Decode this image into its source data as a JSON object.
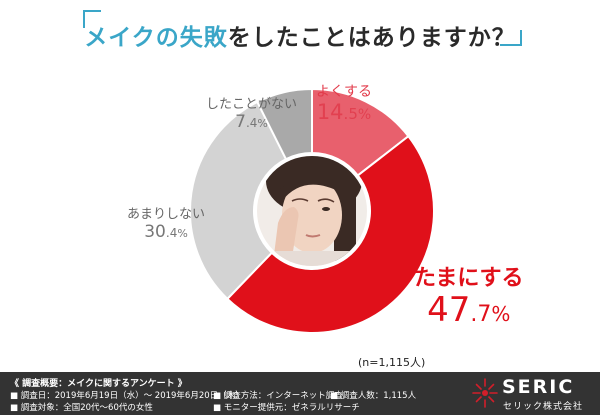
{
  "title": {
    "pre": "メイクの失敗",
    "post": "をしたことはありますか？"
  },
  "colors": {
    "accent": "#3aa6c8",
    "tamani": "#e0101a",
    "yoku": "#e8606d",
    "amari": "#d3d3d3",
    "nai": "#a9a9a9"
  },
  "chart_data": {
    "type": "pie",
    "donut": true,
    "center_image": "woman-rubbing-eye",
    "categories": [
      "よくする",
      "たまにする",
      "あまりしない",
      "したことがない"
    ],
    "values": [
      14.5,
      47.7,
      30.4,
      7.4
    ],
    "value_labels": {
      "よくする": {
        "int": "14",
        "dec": ".5",
        "unit": "%"
      },
      "たまにする": {
        "int": "47",
        "dec": ".7",
        "unit": "%"
      },
      "あまりしない": {
        "int": "30",
        "dec": ".4",
        "unit": "%"
      },
      "したことがない": {
        "int": "7",
        "dec": ".4",
        "unit": "%"
      }
    },
    "note": "(n=1,115人)"
  },
  "footer": {
    "heading": "《 調査概要：メイクに関するアンケート 》",
    "date": "■ 調査日：2019年6月19日（水）～ 2019年6月20日（木）",
    "target": "■ 調査対象：全国20代～60代の女性",
    "method": "■ 調査方法：インターネット調査",
    "count": "■ 調査人数：1,115人",
    "provider": "■ モニター提供元：ゼネラルリサーチ",
    "logo_name": "SERIC",
    "logo_sub": "セリック株式会社"
  }
}
